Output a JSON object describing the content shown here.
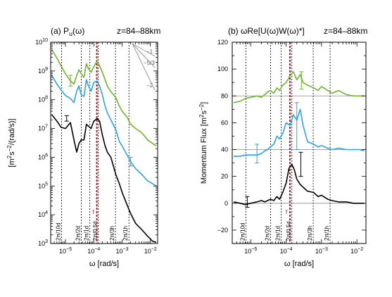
{
  "figure": {
    "panel_a_prefix": "(a) P",
    "panel_a_sub": "u",
    "panel_a_arg": "(ω)",
    "panel_b_title": "(b) ωRe[U(ω)W(ω)*]",
    "altitude_label": "z=84–88km"
  },
  "colors": {
    "green": "#6fb52e",
    "blue": "#2aa3e8",
    "black": "#000000",
    "red": "#c0141c",
    "hline": "#8a8a8a",
    "slope": "#9a9a9a"
  },
  "chart_data": [
    {
      "type": "line",
      "id": "a",
      "title": "(a) Pu(ω)",
      "annotation": "z=84–88km",
      "xlabel": "ω [rad/s]",
      "ylabel": "[m²s⁻²/(rad/s)]",
      "xscale": "log",
      "yscale": "log",
      "xlim": [
        3e-06,
        0.018
      ],
      "ylim": [
        1000,
        10000000000.0
      ],
      "xticks": [
        {
          "v": 1e-05,
          "base": "10",
          "exp": "−5"
        },
        {
          "v": 0.0001,
          "base": "10",
          "exp": "−4"
        },
        {
          "v": 0.001,
          "base": "10",
          "exp": "−3"
        },
        {
          "v": 0.01,
          "base": "10",
          "exp": "−2"
        }
      ],
      "yticks": [
        {
          "v": 1000.0,
          "base": "10",
          "exp": "3"
        },
        {
          "v": 10000.0,
          "base": "10",
          "exp": "4"
        },
        {
          "v": 100000.0,
          "base": "10",
          "exp": "5"
        },
        {
          "v": 1000000.0,
          "base": "10",
          "exp": "6"
        },
        {
          "v": 10000000.0,
          "base": "10",
          "exp": "7"
        },
        {
          "v": 100000000.0,
          "base": "10",
          "exp": "8"
        },
        {
          "v": 1000000000.0,
          "base": "10",
          "exp": "9"
        },
        {
          "v": 10000000000.0,
          "base": "10",
          "exp": "10"
        }
      ],
      "vlines": [
        {
          "x": 7.27e-06,
          "label": "2π/10d"
        },
        {
          "x": 3.64e-05,
          "label": "2π/2d"
        },
        {
          "x": 7.27e-05,
          "label": "2π/1d"
        },
        {
          "x": 0.0001454,
          "label": "2π/0.5d"
        },
        {
          "x": 0.000582,
          "label": "2π/3h"
        },
        {
          "x": 0.001745,
          "label": "2π/1h"
        }
      ],
      "f_line": {
        "x": 0.000128,
        "label": "f"
      },
      "slope_labels": [
        "−1",
        "−5/3",
        "−2"
      ],
      "series": [
        {
          "color": "green",
          "points": [
            [
              3.3e-06,
              5500000000.0
            ],
            [
              5e-06,
              2800000000.0
            ],
            [
              7e-06,
              1500000000.0
            ],
            [
              1e-05,
              800000000.0
            ],
            [
              1.5e-05,
              450000000.0
            ],
            [
              2e-05,
              350000000.0
            ],
            [
              2.5e-05,
              700000000.0
            ],
            [
              3e-05,
              1100000000.0
            ],
            [
              3.6e-05,
              800000000.0
            ],
            [
              4.5e-05,
              600000000.0
            ],
            [
              5.5e-05,
              1800000000.0
            ],
            [
              6.5e-05,
              1200000000.0
            ],
            [
              8e-05,
              900000000.0
            ],
            [
              0.0001,
              1400000000.0
            ],
            [
              0.00013,
              2200000000.0
            ],
            [
              0.00016,
              1500000000.0
            ],
            [
              0.0002,
              900000000.0
            ],
            [
              0.00025,
              500000000.0
            ],
            [
              0.0003,
              300000000.0
            ],
            [
              0.0004,
              190000000.0
            ],
            [
              0.0006,
              120000000.0
            ],
            [
              0.0008,
              60000000.0
            ],
            [
              0.001,
              40000000.0
            ],
            [
              0.0015,
              25000000.0
            ],
            [
              0.002,
              14000000.0
            ],
            [
              0.003,
              10000000.0
            ],
            [
              0.005,
              7000000.0
            ],
            [
              0.008,
              4000000.0
            ],
            [
              0.012,
              3000000.0
            ],
            [
              0.016,
              2500000.0
            ]
          ]
        },
        {
          "color": "blue",
          "points": [
            [
              3.3e-06,
              700000000.0
            ],
            [
              5e-06,
              350000000.0
            ],
            [
              7e-06,
              220000000.0
            ],
            [
              1e-05,
              140000000.0
            ],
            [
              1.5e-05,
              110000000.0
            ],
            [
              2e-05,
              80000000.0
            ],
            [
              2.5e-05,
              200000000.0
            ],
            [
              3e-05,
              300000000.0
            ],
            [
              3.6e-05,
              150000000.0
            ],
            [
              4.5e-05,
              130000000.0
            ],
            [
              5.5e-05,
              500000000.0
            ],
            [
              6.5e-05,
              300000000.0
            ],
            [
              8e-05,
              200000000.0
            ],
            [
              0.0001,
              400000000.0
            ],
            [
              0.00013,
              450000000.0
            ],
            [
              0.00016,
              300000000.0
            ],
            [
              0.0002,
              150000000.0
            ],
            [
              0.00025,
              60000000.0
            ],
            [
              0.0003,
              35000000.0
            ],
            [
              0.0004,
              20000000.0
            ],
            [
              0.0006,
              9000000.0
            ],
            [
              0.0008,
              3500000.0
            ],
            [
              0.001,
              2500000.0
            ],
            [
              0.0015,
              1200000.0
            ],
            [
              0.002,
              700000.0
            ],
            [
              0.003,
              400000.0
            ],
            [
              0.005,
              250000.0
            ],
            [
              0.008,
              150000.0
            ],
            [
              0.012,
              120000.0
            ],
            [
              0.016,
              100000.0
            ]
          ]
        },
        {
          "color": "black",
          "points": [
            [
              3.3e-06,
              30000000.0
            ],
            [
              5e-06,
              18000000.0
            ],
            [
              7e-06,
              11000000.0
            ],
            [
              1e-05,
              10000000.0
            ],
            [
              1.5e-05,
              16000000.0
            ],
            [
              2e-05,
              4000000.0
            ],
            [
              2.5e-05,
              1500000.0
            ],
            [
              3e-05,
              3000000.0
            ],
            [
              3.6e-05,
              4000000.0
            ],
            [
              4.5e-05,
              4000000.0
            ],
            [
              5.5e-05,
              14000000.0
            ],
            [
              6.5e-05,
              12000000.0
            ],
            [
              8e-05,
              10000000.0
            ],
            [
              0.0001,
              18000000.0
            ],
            [
              0.00013,
              22000000.0
            ],
            [
              0.00016,
              18000000.0
            ],
            [
              0.0002,
              6000000.0
            ],
            [
              0.00025,
              2500000.0
            ],
            [
              0.0003,
              1500000.0
            ],
            [
              0.0004,
              1000000.0
            ],
            [
              0.0006,
              250000.0
            ],
            [
              0.0008,
              120000.0
            ],
            [
              0.001,
              60000.0
            ],
            [
              0.0015,
              22000.0
            ],
            [
              0.002,
              11000.0
            ],
            [
              0.003,
              5000.0
            ],
            [
              0.005,
              3000.0
            ],
            [
              0.008,
              1800.0
            ],
            [
              0.012,
              1200.0
            ],
            [
              0.016,
              1100.0
            ]
          ]
        }
      ],
      "error_bars": [
        {
          "color": "green",
          "x": 1.5e-05,
          "lo": 300000000.0,
          "hi": 700000000.0
        },
        {
          "color": "blue",
          "x": 0.002,
          "lo": 500000.0,
          "hi": 1000000.0
        },
        {
          "color": "black",
          "x": 1.1e-05,
          "lo": 18000000.0,
          "hi": 28000000.0
        }
      ]
    },
    {
      "type": "line",
      "id": "b",
      "title": "(b) ωRe[U(ω)W(ω)*]",
      "annotation": "z=84–88km",
      "xlabel": "ω [rad/s]",
      "ylabel": "Momentum Flux [m²s⁻²]",
      "xscale": "log",
      "yscale": "linear",
      "xlim": [
        3e-06,
        0.018
      ],
      "ylim": [
        -30,
        120
      ],
      "xticks": [
        {
          "v": 1e-05,
          "base": "10",
          "exp": "−5"
        },
        {
          "v": 0.0001,
          "base": "10",
          "exp": "−4"
        },
        {
          "v": 0.001,
          "base": "10",
          "exp": "−3"
        },
        {
          "v": 0.01,
          "base": "10",
          "exp": "−2"
        }
      ],
      "yticks": [
        -20,
        0,
        20,
        40,
        60,
        80,
        100,
        120
      ],
      "hlines": [
        0,
        40,
        80
      ],
      "vlines": [
        {
          "x": 7.27e-06,
          "label": "2π/10d"
        },
        {
          "x": 3.64e-05,
          "label": "2π/2d"
        },
        {
          "x": 7.27e-05,
          "label": "2π/1d"
        },
        {
          "x": 0.0001454,
          "label": "2π/0.5d"
        },
        {
          "x": 0.000582,
          "label": "2π/3h"
        },
        {
          "x": 0.001745,
          "label": "2π/1h"
        }
      ],
      "f_line": {
        "x": 0.000128,
        "label": "f"
      },
      "series": [
        {
          "color": "green",
          "points": [
            [
              3.3e-06,
              75
            ],
            [
              5e-06,
              76
            ],
            [
              7e-06,
              78
            ],
            [
              1e-05,
              79
            ],
            [
              1.5e-05,
              80
            ],
            [
              2e-05,
              79
            ],
            [
              2.5e-05,
              81
            ],
            [
              3e-05,
              83
            ],
            [
              3.6e-05,
              84
            ],
            [
              4.5e-05,
              82
            ],
            [
              5.5e-05,
              86
            ],
            [
              6.5e-05,
              84
            ],
            [
              8e-05,
              88
            ],
            [
              0.0001,
              90
            ],
            [
              0.00013,
              95
            ],
            [
              0.00016,
              98
            ],
            [
              0.0002,
              92
            ],
            [
              0.00025,
              96
            ],
            [
              0.0003,
              90
            ],
            [
              0.0004,
              88
            ],
            [
              0.0006,
              86
            ],
            [
              0.0008,
              84
            ],
            [
              0.001,
              87
            ],
            [
              0.0015,
              84
            ],
            [
              0.002,
              82
            ],
            [
              0.003,
              84
            ],
            [
              0.005,
              81
            ],
            [
              0.008,
              80
            ],
            [
              0.012,
              80
            ],
            [
              0.016,
              80
            ]
          ]
        },
        {
          "color": "blue",
          "points": [
            [
              3.3e-06,
              35
            ],
            [
              5e-06,
              35
            ],
            [
              7e-06,
              36
            ],
            [
              1e-05,
              36
            ],
            [
              1.5e-05,
              36
            ],
            [
              2e-05,
              37
            ],
            [
              2.5e-05,
              39
            ],
            [
              3e-05,
              40
            ],
            [
              3.6e-05,
              42
            ],
            [
              4.5e-05,
              44
            ],
            [
              5.5e-05,
              50
            ],
            [
              6.5e-05,
              48
            ],
            [
              8e-05,
              52
            ],
            [
              0.0001,
              60
            ],
            [
              0.00013,
              58
            ],
            [
              0.00016,
              66
            ],
            [
              0.0002,
              62
            ],
            [
              0.00025,
              70
            ],
            [
              0.0003,
              58
            ],
            [
              0.0004,
              46
            ],
            [
              0.0006,
              44
            ],
            [
              0.0008,
              42
            ],
            [
              0.001,
              43
            ],
            [
              0.0015,
              41
            ],
            [
              0.002,
              40
            ],
            [
              0.003,
              41
            ],
            [
              0.005,
              40
            ],
            [
              0.008,
              40
            ],
            [
              0.012,
              40
            ],
            [
              0.016,
              39
            ]
          ]
        },
        {
          "color": "black",
          "points": [
            [
              3.3e-06,
              1
            ],
            [
              5e-06,
              0
            ],
            [
              7e-06,
              -1
            ],
            [
              1e-05,
              0
            ],
            [
              1.5e-05,
              1
            ],
            [
              2e-05,
              2
            ],
            [
              2.5e-05,
              1
            ],
            [
              3e-05,
              2
            ],
            [
              3.6e-05,
              3
            ],
            [
              4.5e-05,
              2
            ],
            [
              5.5e-05,
              5
            ],
            [
              6.5e-05,
              3
            ],
            [
              8e-05,
              8
            ],
            [
              0.0001,
              15
            ],
            [
              0.00012,
              26
            ],
            [
              0.000145,
              29
            ],
            [
              0.00017,
              25
            ],
            [
              0.0002,
              18
            ],
            [
              0.00025,
              14
            ],
            [
              0.0003,
              12
            ],
            [
              0.0004,
              9
            ],
            [
              0.0006,
              8
            ],
            [
              0.0008,
              5
            ],
            [
              0.001,
              6
            ],
            [
              0.0015,
              3
            ],
            [
              0.002,
              2
            ],
            [
              0.003,
              1
            ],
            [
              0.005,
              1
            ],
            [
              0.008,
              0
            ],
            [
              0.016,
              0
            ]
          ]
        }
      ],
      "error_bars": [
        {
          "color": "blue",
          "x": 1.5e-05,
          "lo": 30,
          "hi": 44
        },
        {
          "color": "blue",
          "x": 0.0002,
          "lo": 40,
          "hi": 75
        },
        {
          "color": "green",
          "x": 0.00027,
          "lo": 85,
          "hi": 98
        },
        {
          "color": "black",
          "x": 0.00026,
          "lo": 20,
          "hi": 38
        },
        {
          "color": "black",
          "x": 8e-06,
          "lo": -3,
          "hi": 5
        }
      ]
    }
  ]
}
